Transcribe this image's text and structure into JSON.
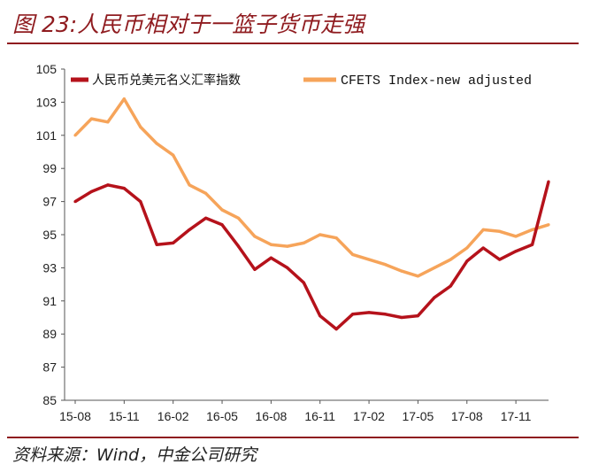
{
  "title": "图 23:人民币相对于一篮子货币走强",
  "source": "资料来源：Wind，中金公司研究",
  "colors": {
    "series1": "#b5121b",
    "series2": "#f6a45a",
    "accent": "#8f1b1f"
  },
  "chart_data": {
    "type": "line",
    "ylim": [
      85,
      105
    ],
    "yticks": [
      "105",
      "103",
      "101",
      "99",
      "97",
      "95",
      "93",
      "91",
      "89",
      "87",
      "85"
    ],
    "xticks": [
      "15-08",
      "15-11",
      "16-02",
      "16-05",
      "16-08",
      "16-11",
      "17-02",
      "17-05",
      "17-08",
      "17-11"
    ],
    "legend_position": "top",
    "grid": false,
    "x": [
      "15-08",
      "15-09",
      "15-10",
      "15-11",
      "15-12",
      "16-01",
      "16-02",
      "16-03",
      "16-04",
      "16-05",
      "16-06",
      "16-07",
      "16-08",
      "16-09",
      "16-10",
      "16-11",
      "16-12",
      "17-01",
      "17-02",
      "17-03",
      "17-04",
      "17-05",
      "17-06",
      "17-07",
      "17-08",
      "17-09",
      "17-10",
      "17-11",
      "17-12",
      "18-01"
    ],
    "series": [
      {
        "name": "人民币兑美元名义汇率指数",
        "values": [
          97.0,
          97.6,
          98.0,
          97.8,
          97.0,
          94.4,
          94.5,
          95.3,
          96.0,
          95.6,
          94.3,
          92.9,
          93.6,
          93.0,
          92.1,
          90.1,
          89.3,
          90.2,
          90.3,
          90.2,
          90.0,
          90.1,
          91.2,
          91.9,
          93.4,
          94.2,
          93.5,
          94.0,
          94.4,
          98.2
        ]
      },
      {
        "name": "CFETS Index-new adjusted",
        "values": [
          101.0,
          102.0,
          101.8,
          103.2,
          101.5,
          100.5,
          99.8,
          98.0,
          97.5,
          96.5,
          96.0,
          94.9,
          94.4,
          94.3,
          94.5,
          95.0,
          94.8,
          93.8,
          93.5,
          93.2,
          92.8,
          92.5,
          93.0,
          93.5,
          94.2,
          95.3,
          95.2,
          94.9,
          95.3,
          95.6
        ]
      }
    ]
  }
}
